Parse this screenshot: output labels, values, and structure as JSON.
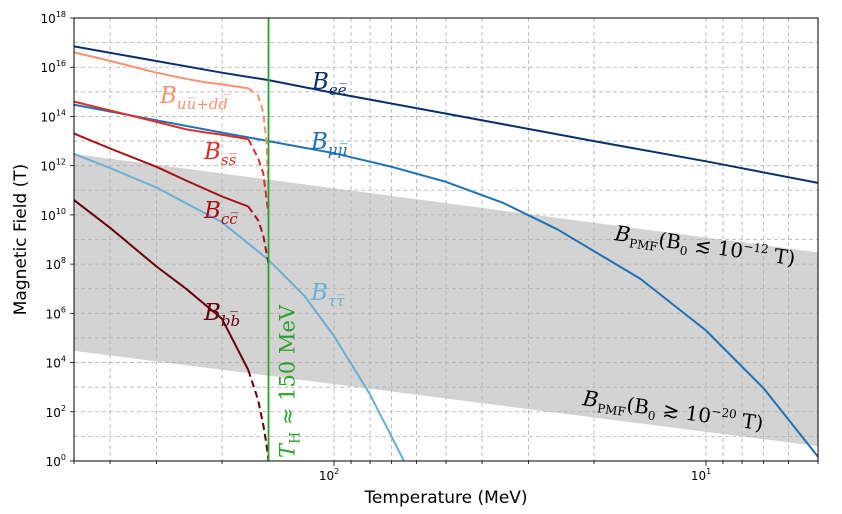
{
  "chart_data": {
    "type": "line",
    "title": "",
    "xlabel": "Temperature (MeV)",
    "ylabel": "Magnetic Field (T)",
    "x_axis": {
      "scale": "log",
      "direction": "decreasing",
      "range_MeV": [
        500,
        5
      ],
      "tick_labels": [
        {
          "value": 100,
          "mantissa": "10",
          "exponent": "2"
        },
        {
          "value": 10,
          "mantissa": "10",
          "exponent": "1"
        }
      ]
    },
    "y_axis": {
      "scale": "log",
      "range_T": [
        1,
        1e+18
      ],
      "tick_labels": [
        {
          "value": 1,
          "mantissa": "10",
          "exponent": "0"
        },
        {
          "value": 100,
          "mantissa": "10",
          "exponent": "2"
        },
        {
          "value": 10000.0,
          "mantissa": "10",
          "exponent": "4"
        },
        {
          "value": 1000000.0,
          "mantissa": "10",
          "exponent": "6"
        },
        {
          "value": 100000000.0,
          "mantissa": "10",
          "exponent": "8"
        },
        {
          "value": 10000000000.0,
          "mantissa": "10",
          "exponent": "10"
        },
        {
          "value": 1000000000000.0,
          "mantissa": "10",
          "exponent": "12"
        },
        {
          "value": 100000000000000.0,
          "mantissa": "10",
          "exponent": "14"
        },
        {
          "value": 1e+16,
          "mantissa": "10",
          "exponent": "16"
        },
        {
          "value": 1e+18,
          "mantissa": "10",
          "exponent": "18"
        }
      ]
    },
    "grid": true,
    "vertical_line": {
      "T_MeV": 150,
      "label_T": "T",
      "label_sub": "H",
      "label_rest": " ≈ 150 MeV",
      "color": "#2ca02c"
    },
    "band": {
      "color": "#d3d3d3",
      "upper": {
        "T_MeV": [
          500,
          5
        ],
        "B_T": [
          3000000000000.0,
          300000000.0
        ]
      },
      "lower": {
        "T_MeV": [
          500,
          5
        ],
        "B_T": [
          30000.0,
          4
        ]
      },
      "upper_label": {
        "main": "B",
        "sub": "PMF",
        "cond": "(B",
        "cond_sub": "0",
        "rel": " ≲ 10",
        "exp": "−12",
        "unit": " T)"
      },
      "lower_label": {
        "main": "B",
        "sub": "PMF",
        "cond": "(B",
        "cond_sub": "0",
        "rel": " ≳ 10",
        "exp": "−20",
        "unit": " T)"
      }
    },
    "series": [
      {
        "name": "ee",
        "label_main": "B",
        "label_sub": "ee̅",
        "color": "#08306b",
        "solid": {
          "T_MeV": [
            500,
            200,
            150,
            100,
            50,
            20,
            10,
            5
          ],
          "B_T": [
            7e+16,
            6000000000000000.0,
            3000000000000000.0,
            900000000000000.0,
            130000000000000.0,
            10000000000000.0,
            1500000000000.0,
            200000000000.0
          ]
        }
      },
      {
        "name": "mumu",
        "label_main": "B",
        "label_sub": "μμ̅",
        "color": "#2171b5",
        "solid": {
          "T_MeV": [
            500,
            300,
            200,
            150,
            100,
            70,
            50,
            35,
            25,
            15,
            10,
            7,
            5
          ],
          "B_T": [
            300000000000000.0,
            70000000000000.0,
            22000000000000.0,
            10000000000000.0,
            3200000000000.0,
            900000000000.0,
            220000000000.0,
            30000000000.0,
            2500000000.0,
            25000000.0,
            200000.0,
            900.0,
            1.5
          ]
        }
      },
      {
        "name": "tautau",
        "label_main": "B",
        "label_sub": "ττ̅",
        "color": "#6baed6",
        "solid": {
          "T_MeV": [
            500,
            400,
            300,
            200,
            150,
            120,
            100,
            80,
            60,
            50
          ],
          "B_T": [
            3000000000000.0,
            800000000000.0,
            130000000000.0,
            5000000000.0,
            150000000.0,
            5000000.0,
            120000.0,
            500.0,
            0.1,
            0.01
          ]
        }
      },
      {
        "name": "uudd",
        "label_main": "B",
        "label_sub": "uu̅+dd̅",
        "color": "#fc9272",
        "solid": {
          "T_MeV": [
            500,
            400,
            300,
            250,
            220,
            200,
            170
          ],
          "B_T": [
            4e+16,
            1.8e+16,
            6000000000000000.0,
            3400000000000000.0,
            2400000000000000.0,
            2000000000000000.0,
            1400000000000000.0
          ]
        },
        "dashed": {
          "T_MeV": [
            170,
            160,
            155,
            152,
            150
          ],
          "B_T": [
            1400000000000000.0,
            700000000000000.0,
            150000000000000.0,
            10000000000000.0,
            100000000000.0
          ]
        }
      },
      {
        "name": "ss",
        "label_main": "B",
        "label_sub": "ss̅",
        "color": "#de2d26",
        "solid": {
          "T_MeV": [
            500,
            300,
            250,
            220,
            200,
            170
          ],
          "B_T": [
            400000000000000.0,
            60000000000000.0,
            30000000000000.0,
            22000000000000.0,
            18000000000000.0,
            12000000000000.0
          ]
        },
        "dashed": {
          "T_MeV": [
            170,
            160,
            155,
            152,
            150
          ],
          "B_T": [
            12000000000000.0,
            2000000000000.0,
            500000000000.0,
            50000000000.0,
            10000000000.0
          ]
        }
      },
      {
        "name": "cc",
        "label_main": "B",
        "label_sub": "cc̅",
        "color": "#a50f15",
        "solid": {
          "T_MeV": [
            500,
            400,
            300,
            250,
            200,
            170
          ],
          "B_T": [
            20000000000000.0,
            5000000000000.0,
            900000000000.0,
            250000000000.0,
            56000000000.0,
            22000000000.0
          ]
        },
        "dashed": {
          "T_MeV": [
            170,
            160,
            155,
            152,
            150
          ],
          "B_T": [
            22000000000.0,
            6000000000.0,
            1500000000.0,
            300000000.0,
            100000000.0
          ]
        }
      },
      {
        "name": "bb",
        "label_main": "B",
        "label_sub": "bb̅",
        "color": "#67000d",
        "solid": {
          "T_MeV": [
            500,
            400,
            300,
            250,
            200,
            170
          ],
          "B_T": [
            40000000000.0,
            3000000000.0,
            80000000.0,
            10000000.0,
            600000.0,
            5000.0
          ]
        },
        "dashed": {
          "T_MeV": [
            170,
            160,
            155,
            152,
            150
          ],
          "B_T": [
            5000.0,
            300.0,
            30.0,
            5,
            1
          ]
        }
      }
    ]
  }
}
